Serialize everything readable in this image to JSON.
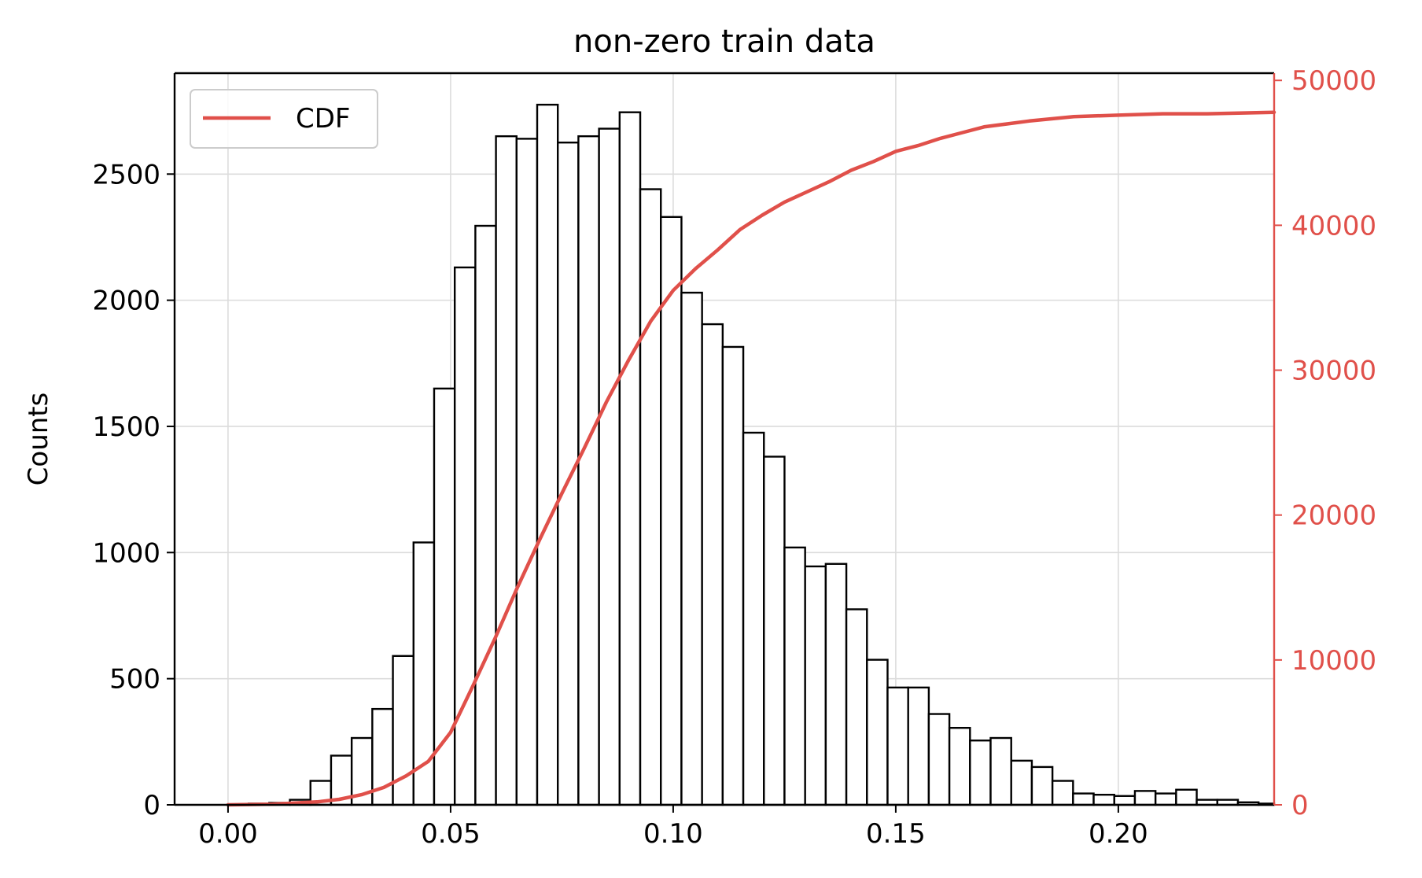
{
  "chart_data": {
    "type": "histogram",
    "title": "non-zero train data",
    "xlabel": "",
    "ylabel": "Counts",
    "y2label": "",
    "xlim": [
      -0.012,
      0.235
    ],
    "ylim": [
      0,
      2900
    ],
    "y2lim": [
      0,
      50500
    ],
    "x_ticks": [
      "0.00",
      "0.05",
      "0.10",
      "0.15",
      "0.20"
    ],
    "x_tick_values": [
      0.0,
      0.05,
      0.1,
      0.15,
      0.2
    ],
    "y_ticks": [
      "0",
      "500",
      "1000",
      "1500",
      "2000",
      "2500"
    ],
    "y_tick_values": [
      0,
      500,
      1000,
      1500,
      2000,
      2500
    ],
    "y2_ticks": [
      "0",
      "10000",
      "20000",
      "30000",
      "40000",
      "50000"
    ],
    "y2_tick_values": [
      0,
      10000,
      20000,
      30000,
      40000,
      50000
    ],
    "grid": true,
    "legend_position": "top-left",
    "bin_width": 0.00463,
    "bin_starts": [
      0.0,
      0.00463,
      0.00926,
      0.01389,
      0.01852,
      0.02315,
      0.02778,
      0.03241,
      0.03704,
      0.04167,
      0.0463,
      0.05093,
      0.05556,
      0.06019,
      0.06482,
      0.06945,
      0.07408,
      0.07871,
      0.08334,
      0.08797,
      0.0926,
      0.09723,
      0.10186,
      0.10649,
      0.11112,
      0.11575,
      0.12038,
      0.12501,
      0.12964,
      0.13427,
      0.1389,
      0.14353,
      0.14816,
      0.15279,
      0.15742,
      0.16205,
      0.16668,
      0.17131,
      0.17594,
      0.18057,
      0.1852,
      0.18983,
      0.19446,
      0.19909,
      0.20372,
      0.20835,
      0.21298,
      0.21761,
      0.22224,
      0.22687,
      0.2315
    ],
    "counts": [
      2,
      5,
      8,
      20,
      95,
      195,
      265,
      380,
      590,
      1040,
      1650,
      2130,
      2295,
      2650,
      2640,
      2775,
      2625,
      2650,
      2680,
      2745,
      2440,
      2330,
      2030,
      1905,
      1815,
      1475,
      1380,
      1020,
      945,
      955,
      775,
      575,
      465,
      465,
      360,
      305,
      255,
      265,
      175,
      150,
      95,
      45,
      40,
      35,
      55,
      45,
      60,
      20,
      20,
      10,
      5
    ],
    "series": [
      {
        "name": "CDF",
        "color": "#e0504a",
        "axis": "right",
        "x": [
          0.0,
          0.01,
          0.02,
          0.025,
          0.03,
          0.035,
          0.04,
          0.045,
          0.05,
          0.055,
          0.06,
          0.065,
          0.07,
          0.075,
          0.08,
          0.085,
          0.09,
          0.095,
          0.1,
          0.105,
          0.11,
          0.115,
          0.12,
          0.125,
          0.13,
          0.135,
          0.14,
          0.145,
          0.15,
          0.155,
          0.16,
          0.165,
          0.17,
          0.175,
          0.18,
          0.19,
          0.2,
          0.21,
          0.22,
          0.235
        ],
        "y": [
          0,
          50,
          200,
          380,
          700,
          1200,
          2000,
          3000,
          5000,
          8200,
          11500,
          15000,
          18300,
          21500,
          24600,
          27800,
          30700,
          33400,
          35500,
          37000,
          38300,
          39700,
          40700,
          41600,
          42300,
          43000,
          43800,
          44400,
          45100,
          45500,
          46000,
          46400,
          46800,
          47000,
          47200,
          47500,
          47600,
          47700,
          47700,
          47800
        ]
      }
    ],
    "bar_fill": "#ffffff",
    "bar_edge": "#000000",
    "right_axis_color": "#e0504a"
  }
}
